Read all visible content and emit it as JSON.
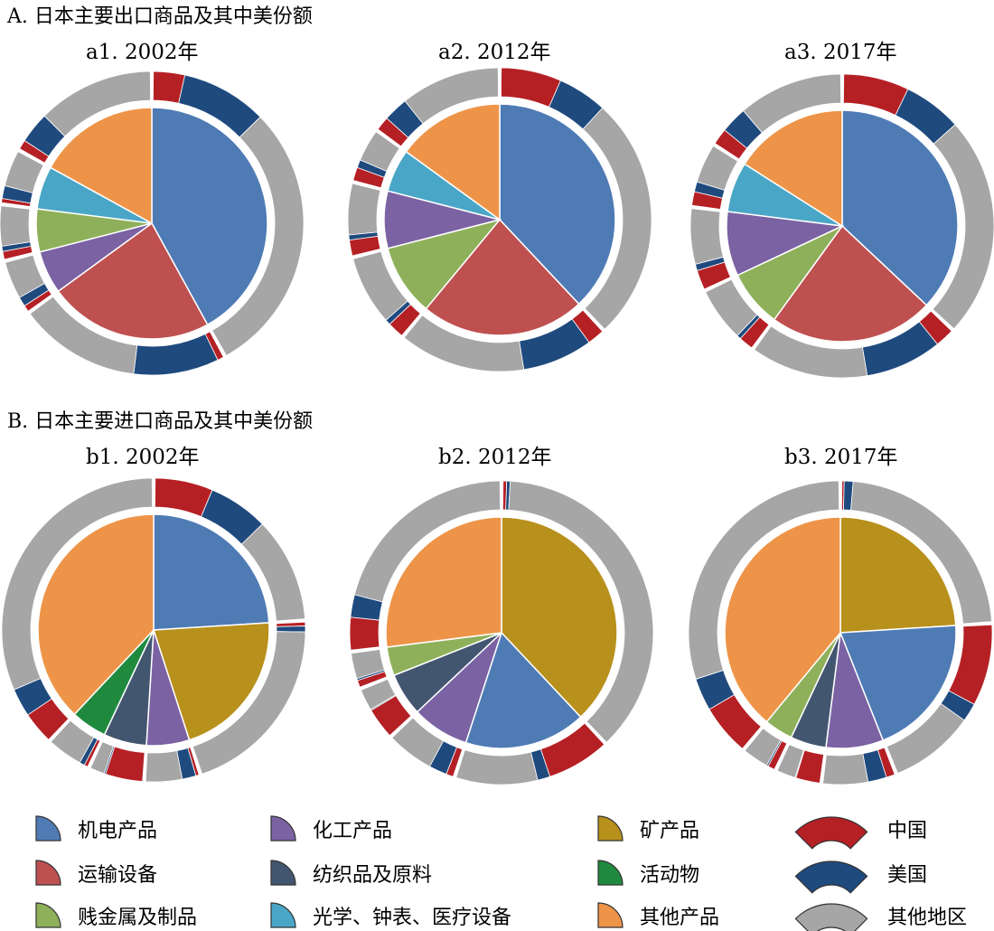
{
  "sections": [
    {
      "title": "A. 日本主要出口商品及其中美份额"
    },
    {
      "title": "B. 日本主要进口商品及其中美份额"
    }
  ],
  "legend": {
    "products": [
      {
        "key": "mech",
        "label": "机电产品",
        "color": "#4f7bb5"
      },
      {
        "key": "chem",
        "label": "化工产品",
        "color": "#7b62a3"
      },
      {
        "key": "mineral",
        "label": "矿产品",
        "color": "#b8901c"
      },
      {
        "key": "transport",
        "label": "运输设备",
        "color": "#bf5050"
      },
      {
        "key": "textile",
        "label": "纺织品及原料",
        "color": "#425670"
      },
      {
        "key": "animal",
        "label": "活动物",
        "color": "#1f8a3e"
      },
      {
        "key": "metal",
        "label": "贱金属及制品",
        "color": "#8fb05a"
      },
      {
        "key": "optical",
        "label": "光学、钟表、医疗设备",
        "color": "#4aa6c6"
      },
      {
        "key": "other",
        "label": "其他产品",
        "color": "#ee9448"
      }
    ],
    "regions": [
      {
        "key": "china",
        "label": "中国",
        "color": "#b52025"
      },
      {
        "key": "usa",
        "label": "美国",
        "color": "#1f4a7e"
      },
      {
        "key": "rest",
        "label": "其他地区",
        "color": "#a6a6a6"
      }
    ]
  },
  "chart_data": [
    {
      "type": "pie",
      "title": "a1. 2002年",
      "group": "export",
      "slices": [
        {
          "product": "mech",
          "value": 42,
          "china": 8,
          "usa": 22
        },
        {
          "product": "transport",
          "value": 23,
          "china": 3,
          "usa": 40,
          "explode": true
        },
        {
          "product": "chem",
          "value": 6,
          "china": 12,
          "usa": 18
        },
        {
          "product": "metal",
          "value": 6,
          "china": 15,
          "usa": 10
        },
        {
          "product": "optical",
          "value": 6,
          "china": 8,
          "usa": 24
        },
        {
          "product": "other",
          "value": 17,
          "china": 6,
          "usa": 20,
          "explode": true
        }
      ]
    },
    {
      "type": "pie",
      "title": "a2. 2012年",
      "group": "export",
      "slices": [
        {
          "product": "mech",
          "value": 38,
          "china": 17,
          "usa": 14
        },
        {
          "product": "transport",
          "value": 23,
          "china": 8,
          "usa": 33
        },
        {
          "product": "metal",
          "value": 10,
          "china": 18,
          "usa": 6
        },
        {
          "product": "chem",
          "value": 8,
          "china": 22,
          "usa": 7
        },
        {
          "product": "optical",
          "value": 6,
          "china": 25,
          "usa": 15
        },
        {
          "product": "other",
          "value": 15,
          "china": 10,
          "usa": 18
        }
      ]
    },
    {
      "type": "pie",
      "title": "a3. 2017年",
      "group": "export",
      "slices": [
        {
          "product": "mech",
          "value": 37,
          "china": 19,
          "usa": 17
        },
        {
          "product": "transport",
          "value": 23,
          "china": 9,
          "usa": 36
        },
        {
          "product": "metal",
          "value": 8,
          "china": 20,
          "usa": 6
        },
        {
          "product": "chem",
          "value": 9,
          "china": 24,
          "usa": 8
        },
        {
          "product": "optical",
          "value": 7,
          "china": 22,
          "usa": 16
        },
        {
          "product": "other",
          "value": 16,
          "china": 11,
          "usa": 18
        }
      ]
    },
    {
      "type": "pie",
      "title": "b1. 2002年",
      "group": "import",
      "slices": [
        {
          "product": "mech",
          "value": 24,
          "china": 26,
          "usa": 27
        },
        {
          "product": "mineral",
          "value": 21,
          "china": 2,
          "usa": 3
        },
        {
          "product": "chem",
          "value": 6,
          "china": 6,
          "usa": 26
        },
        {
          "product": "textile",
          "value": 6,
          "china": 70,
          "usa": 3
        },
        {
          "product": "animal",
          "value": 5,
          "china": 8,
          "usa": 12
        },
        {
          "product": "other",
          "value": 38,
          "china": 9,
          "usa": 8
        }
      ]
    },
    {
      "type": "pie",
      "title": "b2. 2012年",
      "group": "import",
      "slices": [
        {
          "product": "mineral",
          "value": 38,
          "china": 1,
          "usa": 1
        },
        {
          "product": "mech",
          "value": 17,
          "china": 40,
          "usa": 8
        },
        {
          "product": "chem",
          "value": 8,
          "china": 10,
          "usa": 25
        },
        {
          "product": "textile",
          "value": 6,
          "china": 58,
          "usa": 2
        },
        {
          "product": "metal",
          "value": 4,
          "china": 20,
          "usa": 6
        },
        {
          "product": "other",
          "value": 27,
          "china": 13,
          "usa": 9
        }
      ]
    },
    {
      "type": "pie",
      "title": "b3. 2017年",
      "group": "import",
      "slices": [
        {
          "product": "mineral",
          "value": 24,
          "china": 1,
          "usa": 4
        },
        {
          "product": "mech",
          "value": 20,
          "china": 44,
          "usa": 10
        },
        {
          "product": "chem",
          "value": 8,
          "china": 12,
          "usa": 26
        },
        {
          "product": "textile",
          "value": 5,
          "china": 55,
          "usa": 2
        },
        {
          "product": "metal",
          "value": 4,
          "china": 20,
          "usa": 5
        },
        {
          "product": "other",
          "value": 39,
          "china": 14,
          "usa": 9
        }
      ]
    }
  ]
}
